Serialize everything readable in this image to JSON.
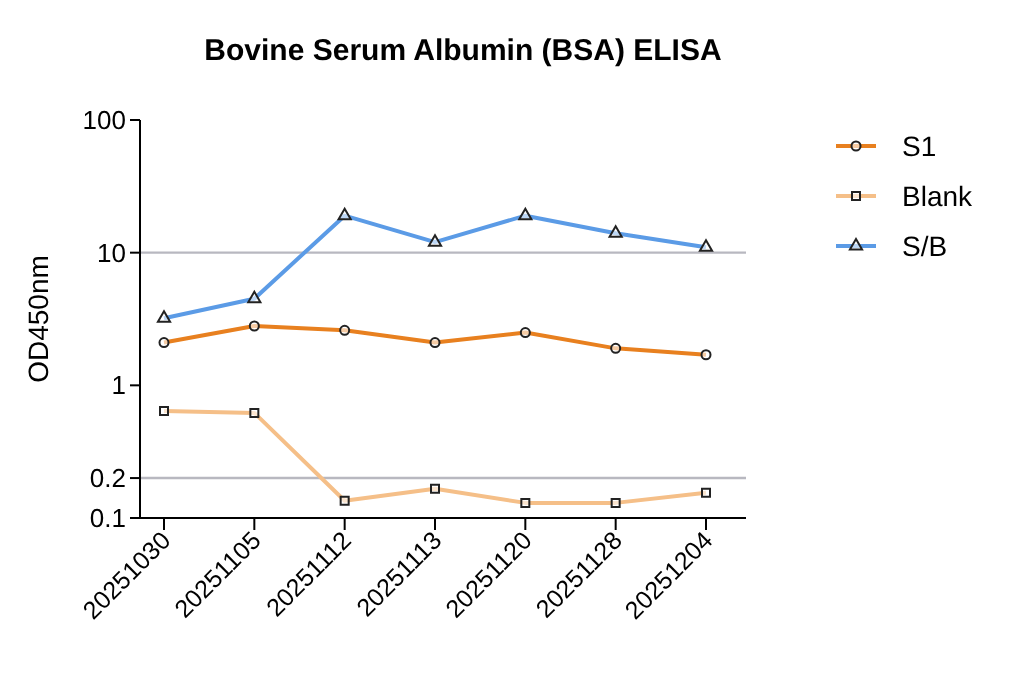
{
  "chart_data": {
    "type": "line",
    "title": "Bovine Serum Albumin (BSA) ELISA",
    "ylabel": "OD450nm",
    "log": true,
    "categories": [
      "20251030",
      "20251105",
      "20251112",
      "20251113",
      "20251120",
      "20251128",
      "20251204"
    ],
    "ylim": [
      0.1,
      100
    ],
    "yticks": [
      0.1,
      0.2,
      1,
      10,
      100
    ],
    "legend": "top right",
    "grid": false,
    "ref_lines": [
      {
        "axis": "y",
        "value": 10,
        "color": "#b8b8c0"
      },
      {
        "axis": "y",
        "value": 0.2,
        "color": "#b8b8c0"
      }
    ],
    "series": [
      {
        "name": "S1",
        "color": "#e8801f",
        "marker": "circle",
        "values": [
          2.1,
          2.8,
          2.6,
          2.1,
          2.5,
          1.9,
          1.7
        ]
      },
      {
        "name": "Blank",
        "color": "#f5bf88",
        "marker": "square",
        "values": [
          0.64,
          0.62,
          0.135,
          0.166,
          0.13,
          0.13,
          0.155
        ]
      },
      {
        "name": "S/B",
        "color": "#5b9be6",
        "marker": "triangle",
        "values": [
          3.2,
          4.5,
          19,
          12,
          19,
          14,
          11
        ]
      }
    ]
  }
}
